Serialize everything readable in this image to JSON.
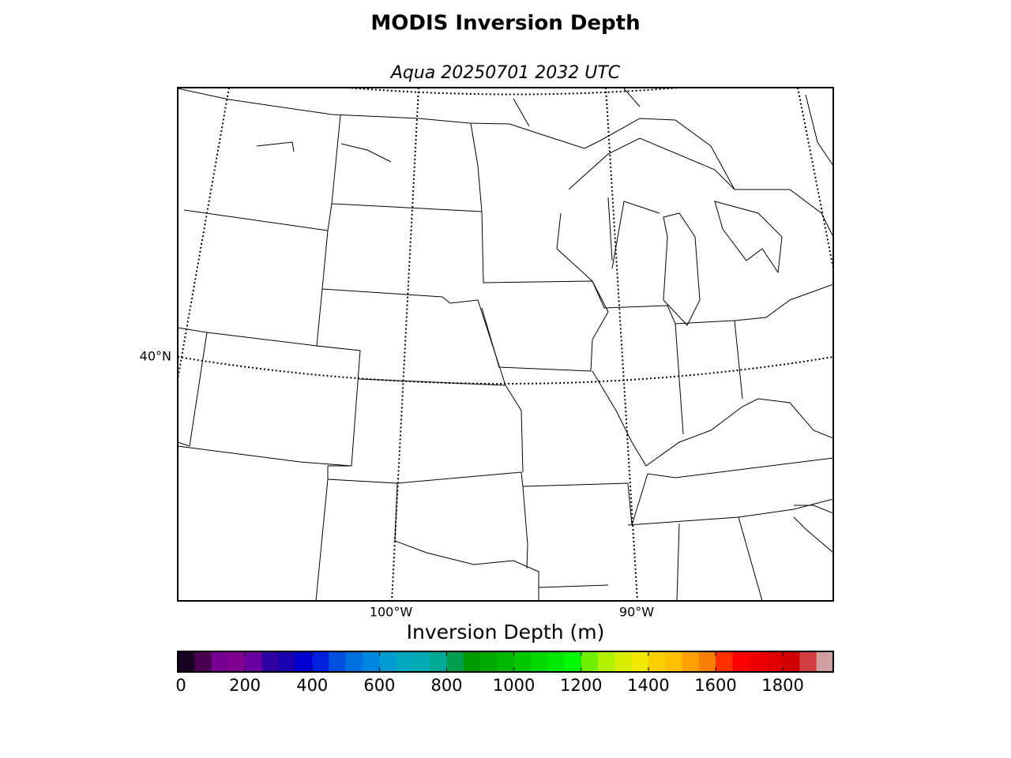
{
  "header": {
    "title": "MODIS Inversion Depth",
    "subtitle": "Aqua 20250701 2032 UTC"
  },
  "map": {
    "lat_labels": [
      "40°N"
    ],
    "lon_labels": [
      "100°W",
      "90°W"
    ]
  },
  "colorbar": {
    "label": "Inversion Depth (m)",
    "lim": [
      0,
      1950
    ],
    "ticks": [
      0,
      200,
      400,
      600,
      800,
      1000,
      1200,
      1400,
      1600,
      1800
    ],
    "colors": [
      "#1a0020",
      "#4a0050",
      "#780090",
      "#800090",
      "#6a00a0",
      "#3000a0",
      "#1a00b0",
      "#0000d0",
      "#0020e0",
      "#0050e0",
      "#0070e0",
      "#0088e0",
      "#009cd0",
      "#00a8c0",
      "#00aab0",
      "#00aa98",
      "#00a050",
      "#009a00",
      "#00a800",
      "#00b800",
      "#00c800",
      "#00d800",
      "#00e800",
      "#00fa00",
      "#70f000",
      "#b0f000",
      "#d8f000",
      "#f0e800",
      "#f8d000",
      "#ffc000",
      "#ffa000",
      "#f88000",
      "#ff3000",
      "#ff0000",
      "#f00000",
      "#e00000",
      "#d00000",
      "#d04040",
      "#d0a0a0"
    ]
  }
}
